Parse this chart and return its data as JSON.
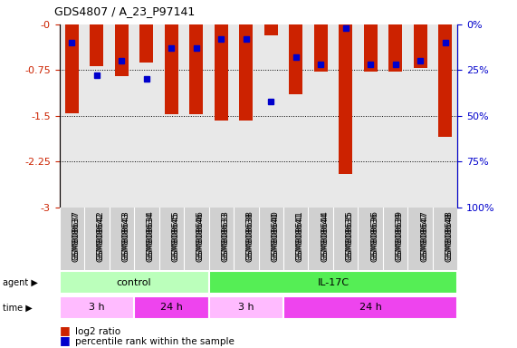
{
  "title": "GDS4807 / A_23_P97141",
  "samples": [
    "GSM808637",
    "GSM808642",
    "GSM808643",
    "GSM808634",
    "GSM808645",
    "GSM808646",
    "GSM808633",
    "GSM808638",
    "GSM808640",
    "GSM808641",
    "GSM808644",
    "GSM808635",
    "GSM808636",
    "GSM808639",
    "GSM808647",
    "GSM808648"
  ],
  "log2_ratio": [
    -1.45,
    -0.68,
    -0.85,
    -0.62,
    -1.47,
    -1.47,
    -1.58,
    -1.57,
    -0.18,
    -1.15,
    -0.78,
    -2.45,
    -0.78,
    -0.78,
    -0.72,
    -1.85
  ],
  "percentile_rank": [
    10,
    28,
    20,
    30,
    13,
    13,
    8,
    8,
    42,
    18,
    22,
    2,
    22,
    22,
    20,
    10
  ],
  "ylim_left": [
    -3,
    0
  ],
  "ylim_right": [
    0,
    100
  ],
  "yticks_left": [
    0,
    -0.75,
    -1.5,
    -2.25,
    -3
  ],
  "yticks_right": [
    0,
    25,
    50,
    75,
    100
  ],
  "ytick_labels_left": [
    "-0",
    "-0.75",
    "-1.5",
    "-2.25",
    "-3"
  ],
  "ytick_labels_right": [
    "100%",
    "75%",
    "50%",
    "25%",
    "0%"
  ],
  "bar_color": "#cc2200",
  "dot_color": "#0000cc",
  "bg_color": "#e8e8e8",
  "agent_groups": [
    {
      "label": "control",
      "start": 0,
      "end": 6,
      "color": "#bbffbb"
    },
    {
      "label": "IL-17C",
      "start": 6,
      "end": 16,
      "color": "#55ee55"
    }
  ],
  "time_groups": [
    {
      "label": "3 h",
      "start": 0,
      "end": 3,
      "color": "#ffbbff"
    },
    {
      "label": "24 h",
      "start": 3,
      "end": 6,
      "color": "#ee44ee"
    },
    {
      "label": "3 h",
      "start": 6,
      "end": 9,
      "color": "#ffbbff"
    },
    {
      "label": "24 h",
      "start": 9,
      "end": 16,
      "color": "#ee44ee"
    }
  ],
  "left_tick_color": "#cc2200",
  "right_tick_color": "#0000cc",
  "bar_width": 0.55,
  "dot_size": 5
}
